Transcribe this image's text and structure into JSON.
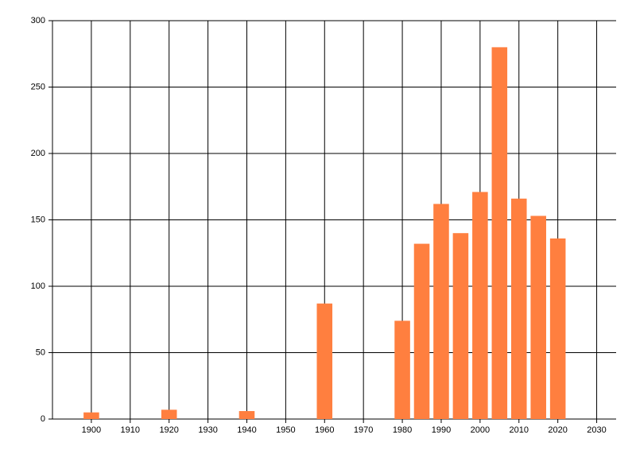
{
  "chart_data": {
    "type": "bar",
    "x": [
      1900,
      1920,
      1940,
      1960,
      1980,
      1985,
      1990,
      1995,
      2000,
      2005,
      2010,
      2015,
      2020
    ],
    "values": [
      5,
      7,
      6,
      87,
      74,
      132,
      162,
      140,
      171,
      280,
      166,
      153,
      136
    ],
    "color": "#ff7f3f",
    "xlim": [
      1890,
      2035
    ],
    "xticks": [
      1900,
      1910,
      1920,
      1930,
      1940,
      1950,
      1960,
      1970,
      1980,
      1990,
      2000,
      2010,
      2020,
      2030
    ],
    "ylim": [
      0,
      300
    ],
    "yticks": [
      0,
      50,
      100,
      150,
      200,
      250,
      300
    ],
    "grid": true
  }
}
